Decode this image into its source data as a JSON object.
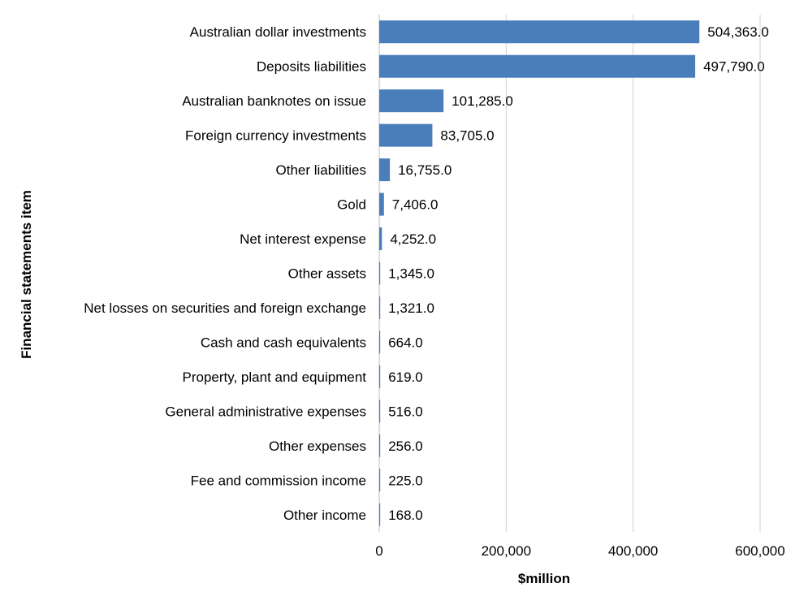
{
  "chart_data": {
    "type": "bar",
    "orientation": "horizontal",
    "xlabel": "$million",
    "ylabel": "Financial statements item",
    "xlim": [
      0,
      600000
    ],
    "x_ticks": [
      "0",
      "200,000",
      "400,000",
      "600,000"
    ],
    "grid": "vertical",
    "bar_color": "#4a7ebb",
    "categories": [
      "Australian dollar investments",
      "Deposits liabilities",
      "Australian banknotes on issue",
      "Foreign currency investments",
      "Other liabilities",
      "Gold",
      "Net interest expense",
      "Other assets",
      "Net losses on securities and foreign exchange",
      "Cash and cash equivalents",
      "Property, plant and equipment",
      "General administrative expenses",
      "Other expenses",
      "Fee and commission income",
      "Other income"
    ],
    "values": [
      504363,
      497790,
      101285,
      83705,
      16755,
      7406,
      4252,
      1345,
      1321,
      664,
      619,
      516,
      256,
      225,
      168
    ],
    "data_labels": [
      "504,363.0",
      "497,790.0",
      "101,285.0",
      "83,705.0",
      "16,755.0",
      "7,406.0",
      "4,252.0",
      "1,345.0",
      "1,321.0",
      "664.0",
      "619.0",
      "516.0",
      "256.0",
      "225.0",
      "168.0"
    ]
  }
}
